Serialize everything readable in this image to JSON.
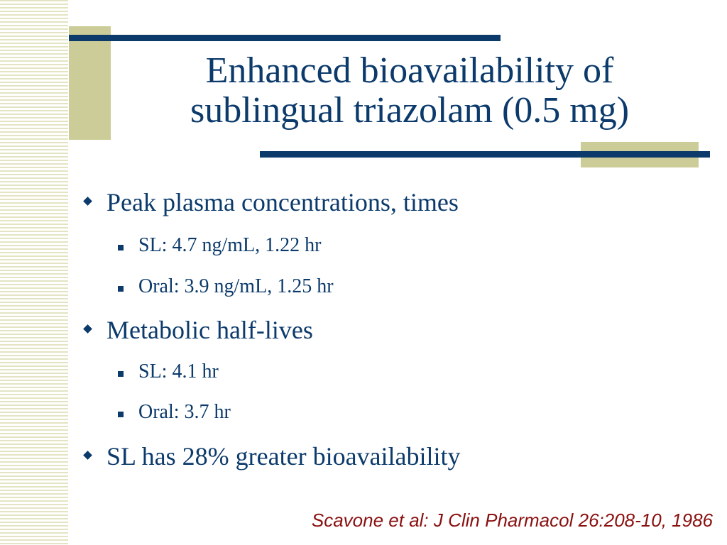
{
  "slide": {
    "title_line1": "Enhanced bioavailability of",
    "title_line2": "sublingual triazolam (0.5 mg)",
    "bullets": [
      {
        "text": "Peak plasma concentrations, times"
      },
      {
        "text": "SL: 4.7 ng/mL, 1.22 hr"
      },
      {
        "text": "Oral: 3.9 ng/mL, 1.25 hr"
      },
      {
        "text": "Metabolic half-lives"
      },
      {
        "text": "SL: 4.1 hr"
      },
      {
        "text": "Oral: 3.7 hr"
      },
      {
        "text": "SL has 28% greater bioavailability"
      }
    ],
    "citation": "Scavone et al: J Clin Pharmacol 26:208-10, 1986"
  },
  "colors": {
    "title": "#0b3a6b",
    "body": "#0b3a6b",
    "accent": "#cccc99",
    "citation": "#8a1010"
  },
  "icons": {
    "level1_bullet": "diamond-bullet-icon",
    "level2_bullet": "square-bullet-icon"
  }
}
